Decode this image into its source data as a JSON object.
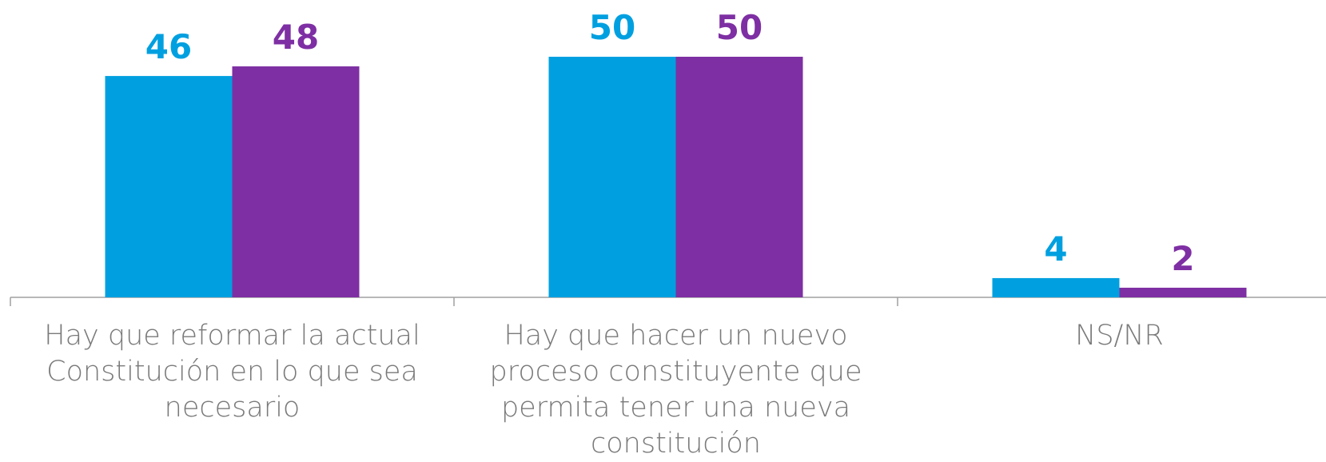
{
  "chart_data": {
    "type": "bar",
    "categories": [
      "Hay que reformar la actual Constitución en lo que sea necesario",
      "Hay que hacer un nuevo proceso constituyente que permita tener una nueva constitución",
      "NS/NR"
    ],
    "series": [
      {
        "color": "#00a0e0",
        "values": [
          46,
          50,
          4
        ]
      },
      {
        "color": "#7e2fa3",
        "values": [
          48,
          50,
          2
        ]
      }
    ]
  }
}
